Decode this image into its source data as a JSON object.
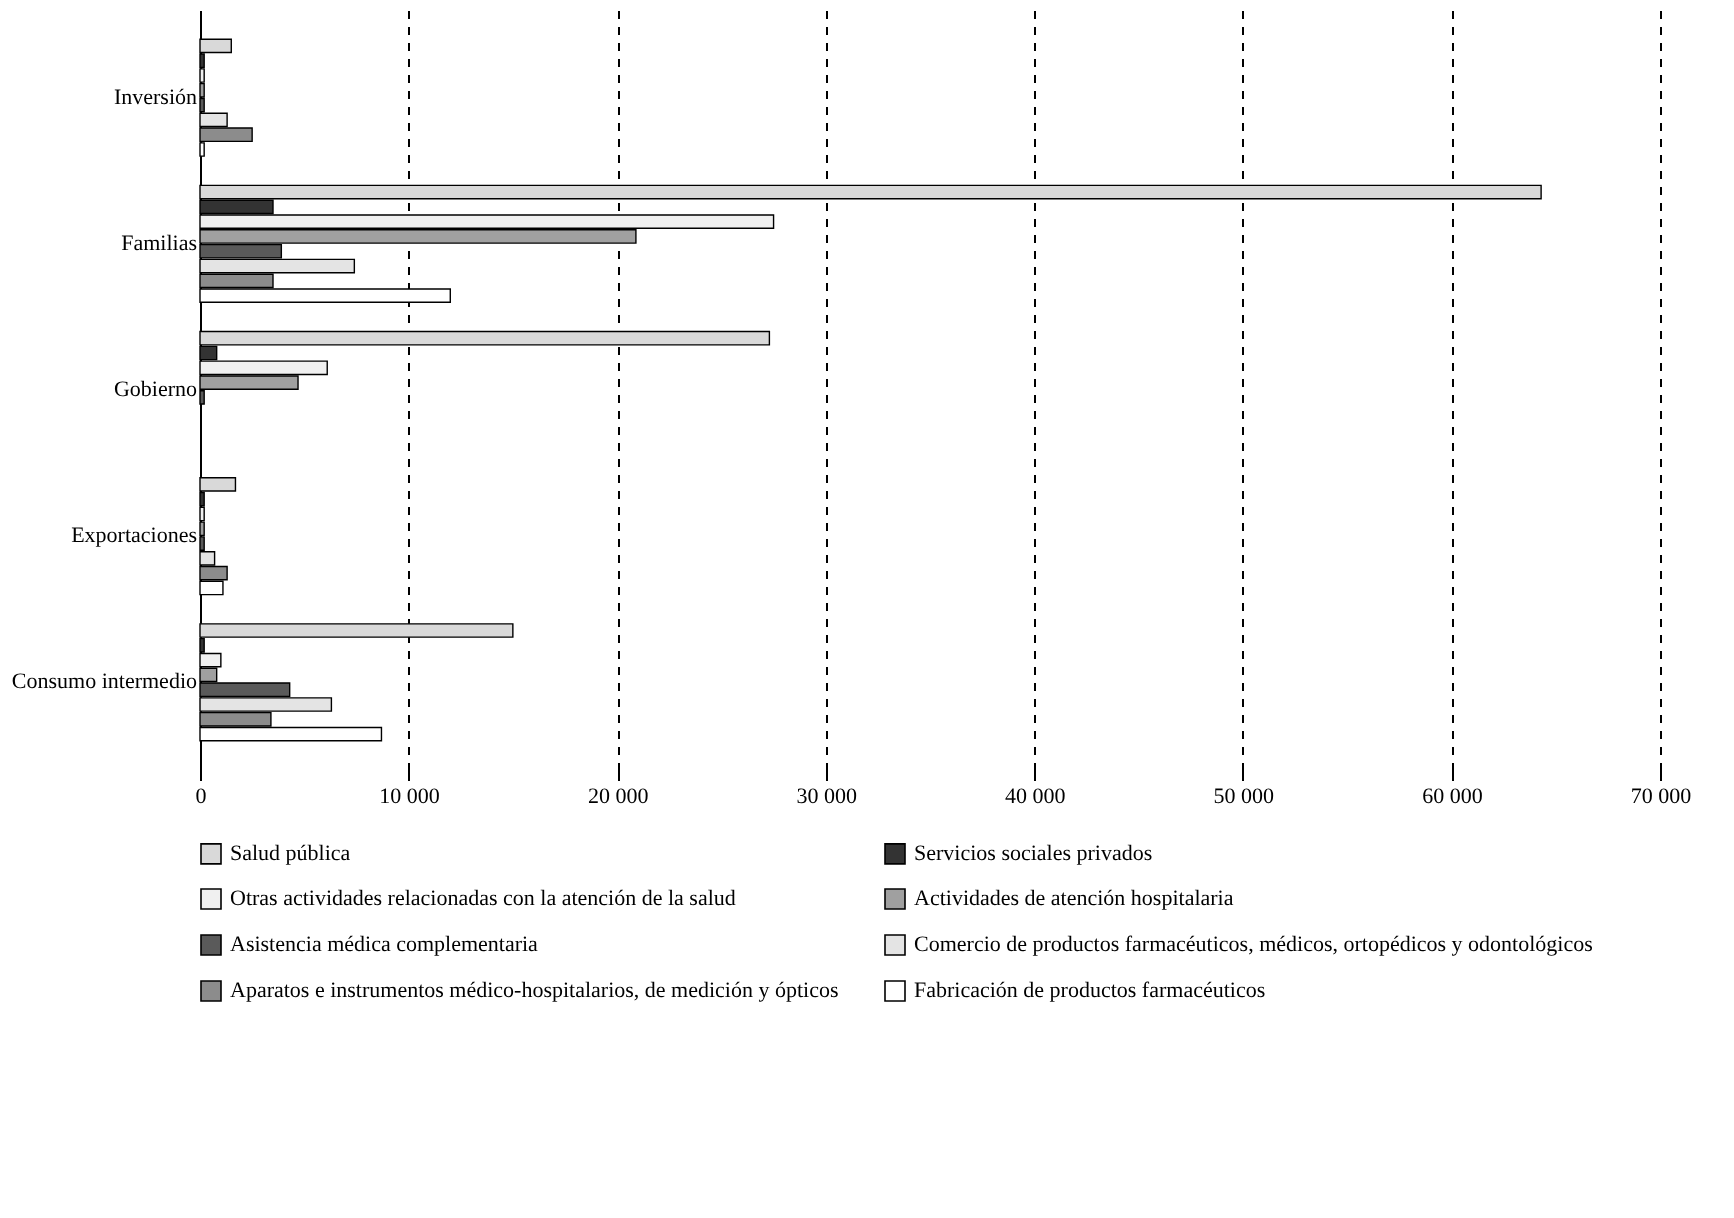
{
  "chart_data": {
    "type": "bar",
    "orientation": "horizontal",
    "categories": [
      "Inversión",
      "Familias",
      "Gobierno",
      "Exportaciones",
      "Consumo intermedio"
    ],
    "series": [
      {
        "name": "Salud pública",
        "color": "#d9d9d9",
        "values": [
          1500,
          64300,
          27300,
          1700,
          15000
        ]
      },
      {
        "name": "Servicios sociales privados",
        "color": "#333333",
        "values": [
          200,
          3500,
          800,
          200,
          200
        ]
      },
      {
        "name": "Otras actividades relacionadas con la atención de la salud",
        "color": "#f0f0f0",
        "values": [
          200,
          27500,
          6100,
          200,
          1000
        ]
      },
      {
        "name": "Actividades de atención hospitalaria",
        "color": "#a0a0a0",
        "values": [
          200,
          20900,
          4700,
          200,
          800
        ]
      },
      {
        "name": "Asistencia médica complementaria",
        "color": "#5a5a5a",
        "values": [
          200,
          3900,
          200,
          200,
          4300
        ]
      },
      {
        "name": "Comercio de productos farmacéuticos, médicos, ortopédicos y odontológicos",
        "color": "#e4e4e4",
        "values": [
          1300,
          7400,
          null,
          700,
          6300
        ]
      },
      {
        "name": "Aparatos e instrumentos médico-hospitalarios, de medición y ópticos",
        "color": "#8c8c8c",
        "values": [
          2500,
          3500,
          null,
          1300,
          3400
        ]
      },
      {
        "name": "Fabricación de productos farmacéuticos",
        "color": "#ffffff",
        "values": [
          200,
          12000,
          null,
          1100,
          8700
        ]
      }
    ],
    "xlim": [
      0,
      70000
    ],
    "xticks": [
      0,
      {
        "value": 10000,
        "label": "10 000"
      },
      {
        "value": 20000,
        "label": "20 000"
      },
      {
        "value": 30000,
        "label": "30 000"
      },
      {
        "value": 40000,
        "label": "40 000"
      },
      {
        "value": 50000,
        "label": "50 000"
      },
      {
        "value": 60000,
        "label": "60 000"
      },
      {
        "value": 70000,
        "label": "70 000"
      }
    ],
    "grid": "x",
    "line_style": "dashed",
    "legend": "bottom"
  }
}
